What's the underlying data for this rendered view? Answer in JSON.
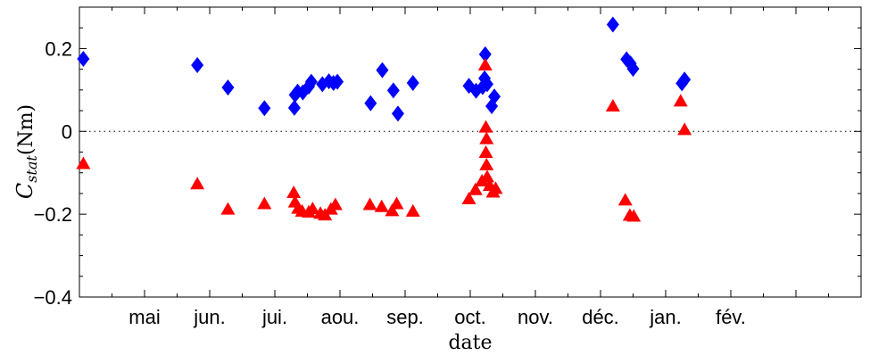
{
  "chart_data": {
    "type": "scatter",
    "title": "",
    "xlabel": "date",
    "ylabel": {
      "symbol": "C",
      "subscript": "stat",
      "unit": "(Nm)"
    },
    "ylim": [
      -0.4,
      0.3
    ],
    "yticks": [
      {
        "value": 0.2,
        "label": "0.2"
      },
      {
        "value": 0,
        "label": "0"
      },
      {
        "value": -0.2,
        "label": "−0.2"
      },
      {
        "value": -0.4,
        "label": "−0.4"
      }
    ],
    "xlim": [
      0,
      12
    ],
    "xticks": [
      {
        "value": 1,
        "label": "mai"
      },
      {
        "value": 2,
        "label": "jun."
      },
      {
        "value": 3,
        "label": "jui."
      },
      {
        "value": 4,
        "label": "aou."
      },
      {
        "value": 5,
        "label": "sep."
      },
      {
        "value": 6,
        "label": "oct."
      },
      {
        "value": 7,
        "label": "nov."
      },
      {
        "value": 8,
        "label": "déc."
      },
      {
        "value": 9,
        "label": "jan."
      },
      {
        "value": 10,
        "label": "fév."
      }
    ],
    "reference_line": {
      "y": 0,
      "style": "dotted"
    },
    "grid": false,
    "series": [
      {
        "marker": "diamond",
        "color": "#0000ff",
        "points": [
          [
            0.06,
            0.175
          ],
          [
            1.81,
            0.16
          ],
          [
            2.28,
            0.106
          ],
          [
            2.84,
            0.056
          ],
          [
            3.3,
            0.057
          ],
          [
            3.31,
            0.088
          ],
          [
            3.35,
            0.096
          ],
          [
            3.43,
            0.094
          ],
          [
            3.52,
            0.108
          ],
          [
            3.56,
            0.12
          ],
          [
            3.73,
            0.114
          ],
          [
            3.83,
            0.121
          ],
          [
            3.9,
            0.117
          ],
          [
            3.96,
            0.12
          ],
          [
            4.47,
            0.068
          ],
          [
            4.65,
            0.148
          ],
          [
            4.82,
            0.099
          ],
          [
            4.89,
            0.043
          ],
          [
            5.12,
            0.117
          ],
          [
            5.98,
            0.11
          ],
          [
            6.09,
            0.098
          ],
          [
            6.19,
            0.107
          ],
          [
            6.22,
            0.128
          ],
          [
            6.23,
            0.186
          ],
          [
            6.26,
            0.114
          ],
          [
            6.33,
            0.061
          ],
          [
            6.37,
            0.084
          ],
          [
            8.19,
            0.258
          ],
          [
            8.4,
            0.174
          ],
          [
            8.46,
            0.164
          ],
          [
            8.5,
            0.151
          ],
          [
            9.25,
            0.116
          ],
          [
            9.29,
            0.125
          ]
        ]
      },
      {
        "marker": "triangle",
        "color": "#ff0000",
        "points": [
          [
            0.06,
            -0.078
          ],
          [
            1.81,
            -0.127
          ],
          [
            2.28,
            -0.188
          ],
          [
            2.84,
            -0.175
          ],
          [
            3.29,
            -0.148
          ],
          [
            3.31,
            -0.171
          ],
          [
            3.36,
            -0.186
          ],
          [
            3.42,
            -0.193
          ],
          [
            3.52,
            -0.195
          ],
          [
            3.58,
            -0.187
          ],
          [
            3.7,
            -0.198
          ],
          [
            3.77,
            -0.202
          ],
          [
            3.86,
            -0.188
          ],
          [
            3.93,
            -0.177
          ],
          [
            4.46,
            -0.177
          ],
          [
            4.64,
            -0.182
          ],
          [
            4.8,
            -0.192
          ],
          [
            4.87,
            -0.175
          ],
          [
            5.12,
            -0.193
          ],
          [
            5.98,
            -0.163
          ],
          [
            6.08,
            -0.141
          ],
          [
            6.18,
            -0.12
          ],
          [
            6.23,
            0.16
          ],
          [
            6.24,
            0.01
          ],
          [
            6.25,
            -0.018
          ],
          [
            6.24,
            -0.051
          ],
          [
            6.25,
            -0.081
          ],
          [
            6.26,
            -0.11
          ],
          [
            6.3,
            -0.131
          ],
          [
            6.35,
            -0.147
          ],
          [
            6.39,
            -0.138
          ],
          [
            8.19,
            0.061
          ],
          [
            8.38,
            -0.166
          ],
          [
            8.45,
            -0.203
          ],
          [
            8.51,
            -0.205
          ],
          [
            9.23,
            0.073
          ],
          [
            9.29,
            0.004
          ]
        ]
      }
    ]
  }
}
